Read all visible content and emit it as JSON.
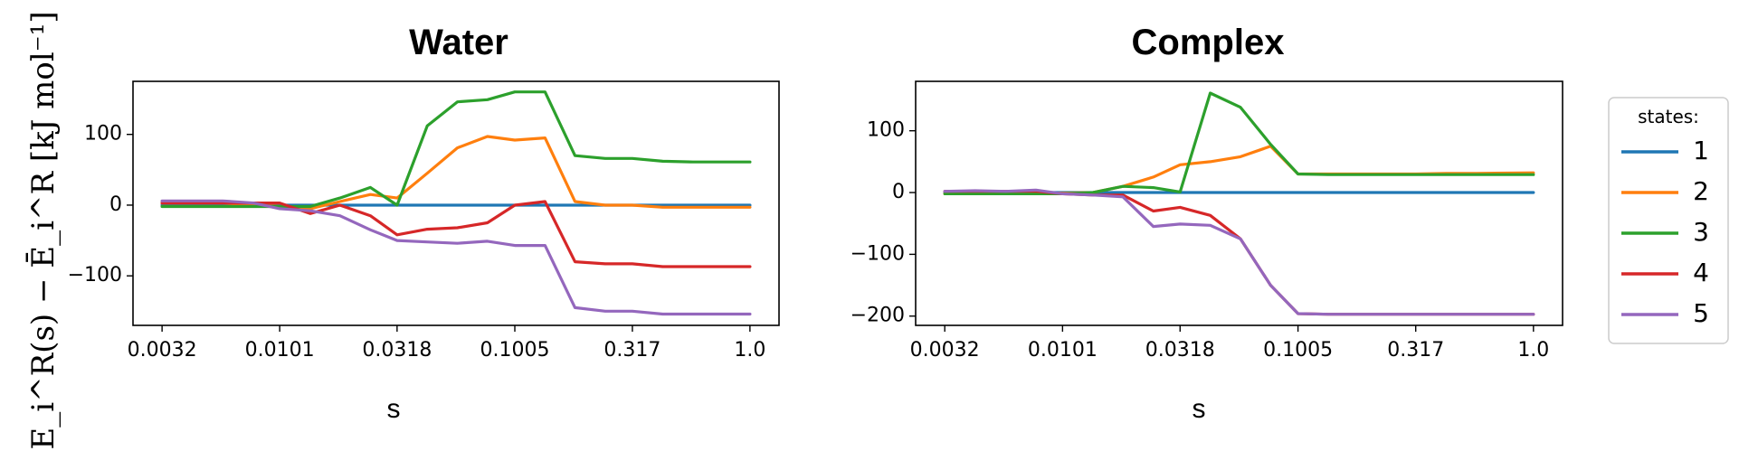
{
  "colors": {
    "1": "#1f77b4",
    "2": "#ff7f0e",
    "3": "#2ca02c",
    "4": "#d62728",
    "5": "#9467bd"
  },
  "ylabel": "E_i^R(s) − Ē_i^R [kJ mol⁻¹]",
  "legend": {
    "title": "states:",
    "entries": [
      "1",
      "2",
      "3",
      "4",
      "5"
    ]
  },
  "chart_data": [
    {
      "type": "line",
      "title": "Water",
      "xlabel": "s",
      "ylabel": "E_i^R(s) − Ē_i^R [kJ mol⁻¹]",
      "xscale": "log",
      "xlim": [
        0.0032,
        1.0
      ],
      "ylim": [
        -170,
        175
      ],
      "xticks": [
        0.0032,
        0.0101,
        0.0318,
        0.1005,
        0.317,
        1.0
      ],
      "xtick_labels": [
        "0.0032",
        "0.0101",
        "0.0318",
        "0.1005",
        "0.317",
        "1.0"
      ],
      "yticks": [
        -100,
        0,
        100
      ],
      "ytick_labels": [
        "−100",
        "0",
        "100"
      ],
      "grid": false,
      "x": [
        0.0032,
        0.0043,
        0.0058,
        0.0078,
        0.0101,
        0.0136,
        0.0182,
        0.0245,
        0.0318,
        0.0427,
        0.0573,
        0.0769,
        0.1005,
        0.135,
        0.181,
        0.243,
        0.317,
        0.426,
        0.572,
        1.0
      ],
      "series": [
        {
          "name": "1",
          "values": [
            0,
            0,
            0,
            0,
            0,
            0,
            0,
            0,
            0,
            0,
            0,
            0,
            0,
            0,
            0,
            0,
            0,
            0,
            0,
            0
          ]
        },
        {
          "name": "2",
          "values": [
            3,
            3,
            3,
            0,
            -2,
            -5,
            5,
            15,
            10,
            45,
            81,
            97,
            92,
            95,
            5,
            0,
            0,
            -3,
            -3,
            -3
          ]
        },
        {
          "name": "3",
          "values": [
            -2,
            -2,
            -2,
            -2,
            -2,
            -2,
            10,
            25,
            0,
            112,
            146,
            149,
            160,
            160,
            70,
            66,
            66,
            62,
            61,
            61
          ]
        },
        {
          "name": "4",
          "values": [
            3,
            3,
            3,
            3,
            3,
            -12,
            0,
            -15,
            -42,
            -34,
            -32,
            -25,
            0,
            5,
            -80,
            -83,
            -83,
            -87,
            -87,
            -87
          ]
        },
        {
          "name": "5",
          "values": [
            6,
            6,
            6,
            3,
            -5,
            -8,
            -15,
            -35,
            -50,
            -52,
            -54,
            -51,
            -57,
            -57,
            -145,
            -150,
            -150,
            -154,
            -154,
            -154
          ]
        }
      ]
    },
    {
      "type": "line",
      "title": "Complex",
      "xlabel": "s",
      "ylabel": "",
      "xscale": "log",
      "xlim": [
        0.0032,
        1.0
      ],
      "ylim": [
        -215,
        180
      ],
      "xticks": [
        0.0032,
        0.0101,
        0.0318,
        0.1005,
        0.317,
        1.0
      ],
      "xtick_labels": [
        "0.0032",
        "0.0101",
        "0.0318",
        "0.1005",
        "0.317",
        "1.0"
      ],
      "yticks": [
        -200,
        -100,
        0,
        100
      ],
      "ytick_labels": [
        "−200",
        "−100",
        "0",
        "100"
      ],
      "grid": false,
      "x": [
        0.0032,
        0.0043,
        0.0058,
        0.0078,
        0.0101,
        0.0136,
        0.0182,
        0.0245,
        0.0318,
        0.0427,
        0.0573,
        0.0769,
        0.1005,
        0.135,
        0.181,
        0.243,
        0.317,
        0.426,
        0.572,
        1.0
      ],
      "series": [
        {
          "name": "1",
          "values": [
            0,
            0,
            0,
            0,
            0,
            0,
            0,
            0,
            0,
            0,
            0,
            0,
            0,
            0,
            0,
            0,
            0,
            0,
            0,
            0
          ]
        },
        {
          "name": "2",
          "values": [
            -2,
            -2,
            -2,
            -1,
            -1,
            0,
            10,
            25,
            45,
            50,
            58,
            75,
            30,
            30,
            30,
            30,
            30,
            31,
            31,
            32
          ]
        },
        {
          "name": "3",
          "values": [
            -2,
            -2,
            -2,
            -2,
            -2,
            0,
            10,
            8,
            1,
            161,
            138,
            78,
            30,
            29,
            29,
            29,
            29,
            29,
            29,
            29
          ]
        },
        {
          "name": "4",
          "values": [
            2,
            2,
            2,
            2,
            -2,
            -4,
            -4,
            -30,
            -24,
            -37,
            -75,
            -150,
            -196,
            -197,
            -197,
            -197,
            -197,
            -197,
            -197,
            -197
          ]
        },
        {
          "name": "5",
          "values": [
            2,
            3,
            2,
            4,
            -2,
            -4,
            -7,
            -55,
            -51,
            -53,
            -75,
            -150,
            -196,
            -197,
            -197,
            -197,
            -197,
            -197,
            -197,
            -197
          ]
        }
      ]
    }
  ]
}
